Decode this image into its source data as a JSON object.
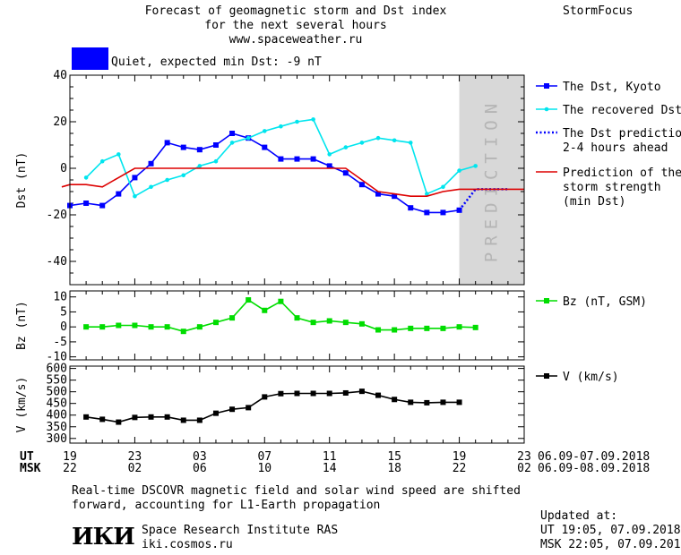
{
  "header": {
    "title_line1": "Forecast of geomagnetic storm and Dst index",
    "title_line2": "for the next several hours",
    "title_line3": "www.spaceweather.ru",
    "brand": "StormFocus",
    "status_label": "Quiet, expected min Dst: -9 nT",
    "status_color": "#0000ff"
  },
  "footer": {
    "note_line1": "Real-time DSCOVR magnetic field and solar wind speed are shifted",
    "note_line2": "forward, accounting for L1-Earth propagation",
    "org_logo": "ИКИ",
    "org_name": "Space Research Institute RAS",
    "org_site": "iki.cosmos.ru",
    "updated_label": "Updated at:",
    "updated_ut": "UT  19:05, 07.09.2018",
    "updated_msk": "MSK 22:05, 07.09.2018"
  },
  "time_axis": {
    "ut_label": "UT",
    "msk_label": "MSK",
    "ut_ticks": [
      "19",
      "23",
      "03",
      "07",
      "11",
      "15",
      "19",
      "23"
    ],
    "msk_ticks": [
      "22",
      "02",
      "06",
      "10",
      "14",
      "18",
      "22",
      "02"
    ],
    "ut_range": "06.09-07.09.2018",
    "msk_range": "06.09-08.09.2018"
  },
  "chart_data": [
    {
      "type": "line",
      "ylabel": "Dst (nT)",
      "ylim": [
        -50,
        40
      ],
      "yticks": [
        40,
        20,
        0,
        -20,
        -40
      ],
      "xlim": [
        0,
        28
      ],
      "prediction_band": {
        "label": "PREDICTION",
        "x_from": 24,
        "x_to": 28,
        "color": "#d8d8d8"
      },
      "series": [
        {
          "name": "The Dst, Kyoto",
          "color": "#0000ff",
          "marker": "square",
          "x": [
            0,
            1,
            2,
            3,
            4,
            5,
            6,
            7,
            8,
            9,
            10,
            11,
            12,
            13,
            14,
            15,
            16,
            17,
            18,
            19,
            20,
            21,
            22,
            23,
            24
          ],
          "y": [
            -16,
            -15,
            -16,
            -11,
            -4,
            2,
            11,
            9,
            8,
            10,
            15,
            13,
            9,
            4,
            4,
            4,
            1,
            -2,
            -7,
            -11,
            -12,
            -17,
            -19,
            -19,
            -18
          ]
        },
        {
          "name": "The recovered Dst",
          "color": "#00e5ee",
          "marker": "dot",
          "x": [
            1,
            2,
            3,
            4,
            5,
            6,
            7,
            8,
            9,
            10,
            11,
            12,
            13,
            14,
            15,
            16,
            17,
            18,
            19,
            20,
            21,
            22,
            23,
            24,
            25
          ],
          "y": [
            -4,
            3,
            6,
            -12,
            -8,
            -5,
            -3,
            1,
            3,
            11,
            13,
            16,
            18,
            20,
            21,
            6,
            9,
            11,
            13,
            12,
            11,
            -11,
            -8,
            -1,
            1
          ]
        },
        {
          "name": "The Dst prediction\n2-4 hours ahead",
          "color": "#0000ff",
          "style": "dotted",
          "x": [
            24,
            25,
            26,
            27
          ],
          "y": [
            -18,
            -9,
            -9,
            -9
          ]
        },
        {
          "name": "Prediction of the\nstorm strength\n(min Dst)",
          "color": "#dd0000",
          "style": "solid",
          "x": [
            -0.5,
            0,
            1,
            2,
            3,
            4,
            5,
            6,
            7,
            8,
            9,
            10,
            11,
            12,
            13,
            14,
            15,
            16,
            17,
            18,
            19,
            20,
            21,
            22,
            23,
            24,
            25,
            26,
            27,
            28
          ],
          "y": [
            -8,
            -7,
            -7,
            -8,
            -4,
            0,
            0,
            0,
            0,
            0,
            0,
            0,
            0,
            0,
            0,
            0,
            0,
            0,
            0,
            -5,
            -10,
            -11,
            -12,
            -12,
            -10,
            -9,
            -9,
            -9,
            -9,
            -9
          ]
        }
      ]
    },
    {
      "type": "line",
      "ylabel": "Bz (nT)",
      "ylim": [
        -11,
        12
      ],
      "yticks": [
        10,
        5,
        0,
        -5,
        -10
      ],
      "xlim": [
        0,
        28
      ],
      "series": [
        {
          "name": "Bz (nT, GSM)",
          "color": "#00dd00",
          "marker": "square",
          "x": [
            1,
            2,
            3,
            4,
            5,
            6,
            7,
            8,
            9,
            10,
            11,
            12,
            13,
            14,
            15,
            16,
            17,
            18,
            19,
            20,
            21,
            22,
            23,
            24,
            25
          ],
          "y": [
            0,
            0,
            0.5,
            0.5,
            0,
            0,
            -1.5,
            0,
            1.5,
            3,
            9,
            5.5,
            8.5,
            3,
            1.5,
            2,
            1.5,
            1,
            -1,
            -1,
            -0.5,
            -0.5,
            -0.5,
            0,
            -0.2
          ]
        }
      ]
    },
    {
      "type": "line",
      "ylabel": "V (km/s)",
      "ylim": [
        280,
        610
      ],
      "yticks": [
        600,
        550,
        500,
        450,
        400,
        350,
        300
      ],
      "xlim": [
        0,
        28
      ],
      "series": [
        {
          "name": "V (km/s)",
          "color": "#000000",
          "marker": "square",
          "x": [
            1,
            2,
            3,
            4,
            5,
            6,
            7,
            8,
            9,
            10,
            11,
            12,
            13,
            14,
            15,
            16,
            17,
            18,
            19,
            20,
            21,
            22,
            23,
            24
          ],
          "y": [
            392,
            382,
            370,
            390,
            392,
            392,
            378,
            378,
            408,
            425,
            432,
            478,
            492,
            493,
            493,
            493,
            495,
            502,
            485,
            467,
            455,
            453,
            455,
            455
          ]
        }
      ]
    }
  ]
}
